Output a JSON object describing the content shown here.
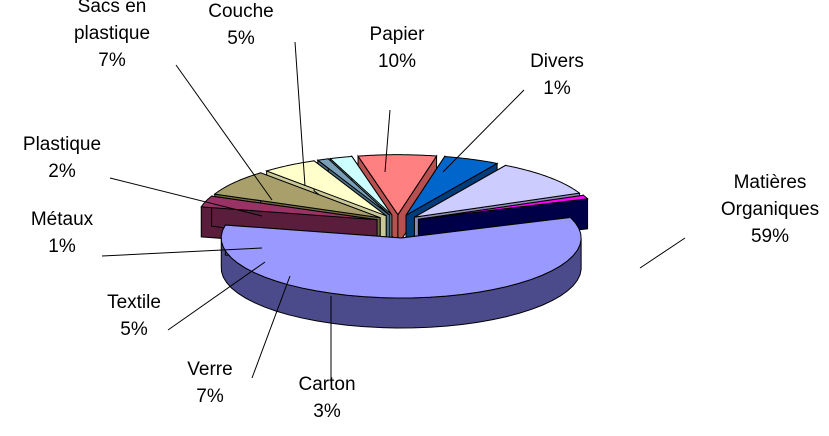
{
  "chart_data": {
    "type": "pie",
    "style": "3d-exploded",
    "title": "",
    "legend": "none",
    "slices": [
      {
        "name": [
          "Matières",
          "Organiques"
        ],
        "value": 59,
        "label": "59%",
        "color": "#9999ff",
        "side_color": "#4b4b8c"
      },
      {
        "name": [
          "Carton"
        ],
        "value": 3,
        "label": "3%",
        "color": "#993366",
        "side_color": "#5a1e3c"
      },
      {
        "name": [
          "Verre"
        ],
        "value": 7,
        "label": "7%",
        "color": "#a89f6a",
        "side_color": "#6e6840"
      },
      {
        "name": [
          "Textile"
        ],
        "value": 5,
        "label": "5%",
        "color": "#ffffcc",
        "side_color": "#c9c99a"
      },
      {
        "name": [
          "Métaux"
        ],
        "value": 1,
        "label": "1%",
        "color": "#7aa0b8",
        "side_color": "#4c6e84"
      },
      {
        "name": [
          "Plastique"
        ],
        "value": 2,
        "label": "2%",
        "color": "#ccffff",
        "side_color": "#8cc2c2"
      },
      {
        "name": [
          "Sacs en",
          "plastique"
        ],
        "value": 7,
        "label": "7%",
        "color": "#ff8080",
        "side_color": "#b85050"
      },
      {
        "name": [
          "Couche"
        ],
        "value": 5,
        "label": "5%",
        "color": "#0066cc",
        "side_color": "#003d7a"
      },
      {
        "name": [
          "Papier"
        ],
        "value": 10,
        "label": "10%",
        "color": "#ccccff",
        "side_color": "#8c8cb8"
      },
      {
        "name": [
          "Divers"
        ],
        "value": 1,
        "label": "1%",
        "color": "#000080",
        "side_color": "#000048"
      }
    ],
    "accent_slice": {
      "name": "Divers",
      "color": "#ff00ff",
      "side_color": "#a000a0"
    }
  }
}
